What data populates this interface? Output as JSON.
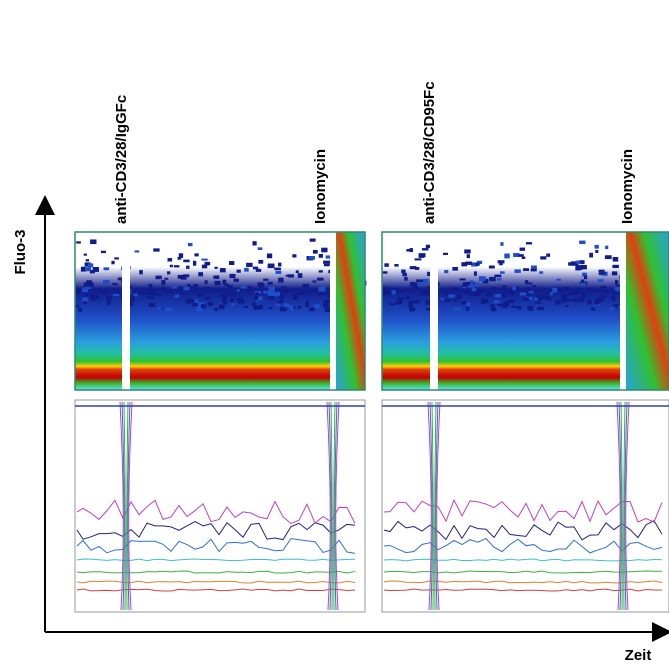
{
  "axes": {
    "y_label": "Fluo-3",
    "x_label": "Zeit"
  },
  "panels": [
    {
      "treatment": "anti-CD3/28/IgGFc",
      "stimulus": "Ionomycin"
    },
    {
      "treatment": "anti-CD3/28/CD95Fc",
      "stimulus": "Ionomycin"
    }
  ]
}
